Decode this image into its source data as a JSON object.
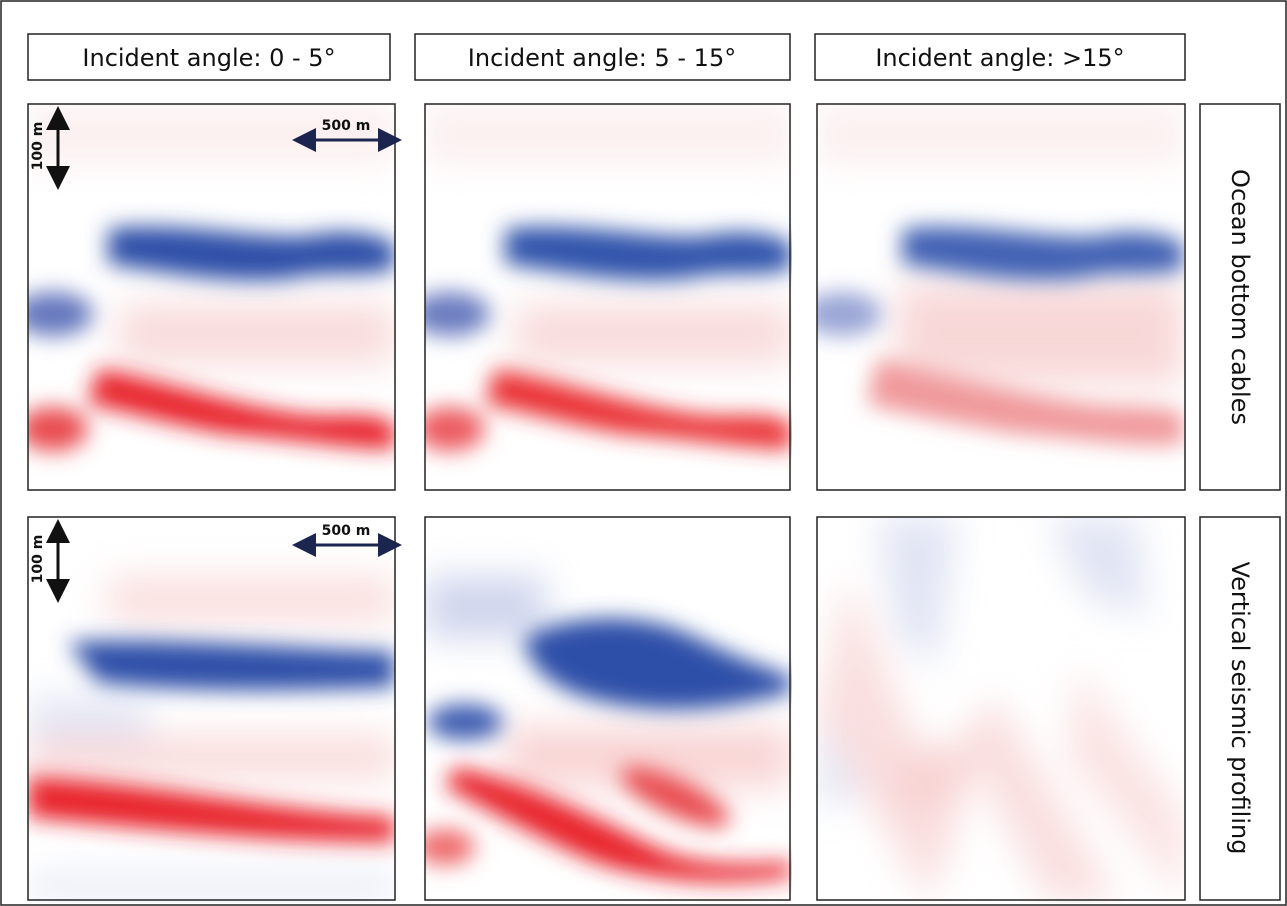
{
  "column_headers": [
    "Incident angle: 0 - 5°",
    "Incident angle: 5 - 15°",
    "Incident angle: >15°"
  ],
  "row_labels": [
    "Ocean bottom cables",
    "Vertical seismic profiling"
  ],
  "scale_bars": [
    {
      "vertical": "100 m",
      "horizontal": "500 m"
    },
    {
      "vertical": "100 m",
      "horizontal": "500 m"
    }
  ]
}
